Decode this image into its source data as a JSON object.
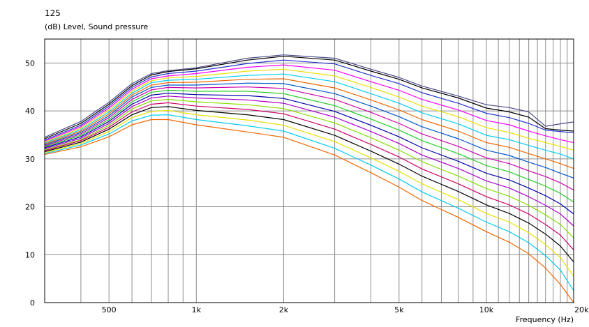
{
  "chart_data": {
    "type": "line",
    "title": "125",
    "ylabel": "(dB)  Level, Sound pressure",
    "xlabel": "Frequency  (Hz)",
    "x_scale": "log",
    "xlim": [
      300,
      20000
    ],
    "ylim": [
      0,
      55
    ],
    "grid": true,
    "x_tick_labels": [
      {
        "value": 500,
        "label": "500"
      },
      {
        "value": 1000,
        "label": "1k"
      },
      {
        "value": 2000,
        "label": "2k"
      },
      {
        "value": 5000,
        "label": "5k"
      },
      {
        "value": 10000,
        "label": "10k"
      },
      {
        "value": 20000,
        "label": "20k"
      }
    ],
    "y_ticks": [
      0,
      10,
      20,
      30,
      40,
      50
    ],
    "x": [
      300,
      400,
      500,
      600,
      700,
      800,
      1000,
      1500,
      2000,
      3000,
      4000,
      5000,
      6000,
      8000,
      10000,
      12000,
      14000,
      16000,
      18000,
      20000
    ],
    "series": [
      {
        "color": "#4a4a8a",
        "values": [
          34.5,
          37.8,
          41.8,
          45.7,
          47.8,
          48.4,
          49.0,
          51.0,
          51.7,
          51.0,
          48.7,
          47.0,
          45.2,
          43.1,
          41.3,
          40.7,
          39.8,
          36.8,
          37.3,
          37.7
        ]
      },
      {
        "color": "#000000",
        "values": [
          34.2,
          37.4,
          41.4,
          45.3,
          47.5,
          48.2,
          48.8,
          50.6,
          51.4,
          50.6,
          48.3,
          46.6,
          44.8,
          42.7,
          40.6,
          39.8,
          38.7,
          36.3,
          36.0,
          35.8
        ]
      },
      {
        "color": "#2233cc",
        "values": [
          33.9,
          37.0,
          41.0,
          44.9,
          47.1,
          47.8,
          48.3,
          49.9,
          50.6,
          49.8,
          47.4,
          45.7,
          43.8,
          41.6,
          39.5,
          38.6,
          37.4,
          36.0,
          35.7,
          35.4
        ]
      },
      {
        "color": "#ff00ff",
        "values": [
          33.7,
          36.7,
          40.6,
          44.5,
          46.7,
          47.3,
          47.8,
          49.1,
          49.6,
          48.5,
          46.1,
          44.3,
          42.4,
          40.2,
          38.0,
          37.1,
          35.8,
          34.8,
          34.0,
          33.4
        ]
      },
      {
        "color": "#e8e000",
        "values": [
          33.5,
          36.4,
          40.2,
          44.1,
          46.3,
          46.9,
          47.2,
          48.3,
          48.7,
          47.3,
          44.9,
          42.9,
          41.0,
          38.8,
          36.5,
          35.5,
          34.3,
          33.4,
          32.6,
          31.8
        ]
      },
      {
        "color": "#00ccee",
        "values": [
          33.3,
          36.1,
          39.8,
          43.7,
          45.9,
          46.4,
          46.6,
          47.4,
          47.7,
          46.1,
          43.6,
          41.6,
          39.6,
          37.3,
          34.9,
          34.0,
          32.8,
          31.8,
          31.0,
          30.0
        ]
      },
      {
        "color": "#ee6600",
        "values": [
          33.1,
          35.8,
          39.4,
          43.3,
          45.4,
          45.9,
          46.0,
          46.6,
          46.7,
          44.8,
          42.3,
          40.2,
          38.2,
          35.8,
          33.4,
          32.4,
          31.1,
          30.0,
          29.0,
          28.0
        ]
      },
      {
        "color": "#0055cc",
        "values": [
          32.9,
          35.5,
          39.0,
          42.9,
          44.9,
          45.4,
          45.4,
          45.8,
          45.7,
          43.6,
          41.0,
          38.8,
          36.7,
          34.2,
          31.8,
          30.7,
          29.3,
          28.2,
          27.0,
          26.0
        ]
      },
      {
        "color": "#cc00aa",
        "values": [
          32.7,
          35.2,
          38.6,
          42.4,
          44.4,
          44.9,
          44.8,
          45.0,
          44.7,
          42.4,
          39.7,
          37.4,
          35.2,
          32.6,
          30.2,
          29.0,
          27.5,
          26.3,
          25.0,
          23.5
        ]
      },
      {
        "color": "#22cc22",
        "values": [
          32.5,
          34.9,
          38.2,
          41.9,
          43.9,
          44.3,
          44.1,
          44.1,
          43.6,
          41.1,
          38.3,
          36.0,
          33.8,
          31.1,
          28.6,
          27.3,
          25.7,
          24.3,
          22.8,
          21.0
        ]
      },
      {
        "color": "#0000aa",
        "values": [
          32.3,
          34.6,
          37.8,
          41.4,
          43.3,
          43.7,
          43.4,
          43.2,
          42.6,
          39.9,
          37.0,
          34.6,
          32.3,
          29.5,
          27.0,
          25.6,
          23.9,
          22.3,
          20.6,
          18.5
        ]
      },
      {
        "color": "#aa00cc",
        "values": [
          32.1,
          34.3,
          37.4,
          40.9,
          42.7,
          43.1,
          42.7,
          42.3,
          41.6,
          38.7,
          35.7,
          33.2,
          30.8,
          28.0,
          25.4,
          23.9,
          22.1,
          20.3,
          18.5,
          16.0
        ]
      },
      {
        "color": "#88dd00",
        "values": [
          31.9,
          34.0,
          37.0,
          40.4,
          42.1,
          42.4,
          41.9,
          41.3,
          40.5,
          37.5,
          34.4,
          31.8,
          29.4,
          26.4,
          23.8,
          22.2,
          20.3,
          18.3,
          16.3,
          13.5
        ]
      },
      {
        "color": "#cc0066",
        "values": [
          31.7,
          33.8,
          36.6,
          39.8,
          41.4,
          41.7,
          41.0,
          40.3,
          39.4,
          36.2,
          33.0,
          30.4,
          27.9,
          24.8,
          22.1,
          20.4,
          18.5,
          16.3,
          14.1,
          11.0
        ]
      },
      {
        "color": "#000000",
        "values": [
          31.5,
          33.5,
          36.2,
          39.2,
          40.7,
          40.9,
          40.1,
          39.2,
          38.2,
          34.9,
          31.6,
          28.9,
          26.4,
          23.2,
          20.4,
          18.6,
          16.6,
          14.3,
          11.8,
          8.5
        ]
      },
      {
        "color": "#e8e000",
        "values": [
          31.3,
          33.2,
          35.7,
          38.6,
          39.9,
          40.1,
          39.2,
          38.1,
          37.0,
          33.6,
          30.2,
          27.4,
          24.8,
          21.5,
          18.6,
          16.8,
          14.6,
          12.1,
          9.4,
          5.5
        ]
      },
      {
        "color": "#00ccee",
        "values": [
          31.1,
          32.9,
          35.2,
          37.9,
          39.1,
          39.2,
          38.2,
          36.9,
          35.8,
          32.2,
          28.7,
          25.8,
          23.1,
          19.7,
          16.8,
          14.8,
          12.5,
          9.8,
          6.8,
          2.5
        ]
      },
      {
        "color": "#ee6600",
        "values": [
          30.9,
          32.5,
          34.6,
          37.1,
          38.2,
          38.2,
          37.1,
          35.6,
          34.5,
          30.8,
          27.1,
          24.1,
          21.3,
          17.8,
          14.8,
          12.6,
          10.2,
          7.2,
          3.8,
          0.0
        ]
      }
    ]
  }
}
